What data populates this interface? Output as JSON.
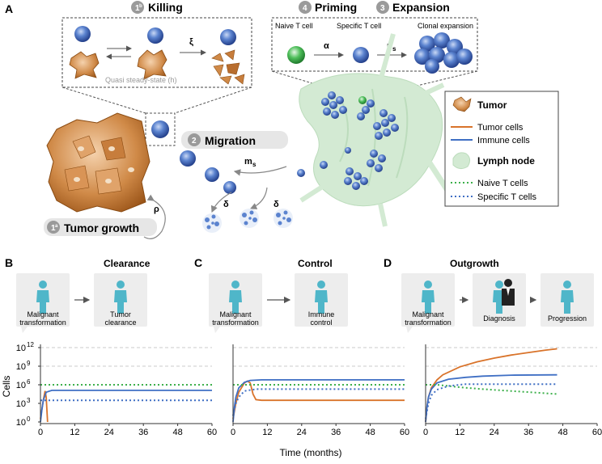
{
  "panels": {
    "A": "A",
    "B": "B",
    "C": "C",
    "D": "D"
  },
  "panel_a": {
    "killing": {
      "badge": "1",
      "badge_sub": "b",
      "title": "Killing",
      "xi": "ξ",
      "note": "Quasi steady-state (h)"
    },
    "priming": {
      "badge": "4",
      "title": "Priming",
      "naive_label": "Naive T cell",
      "specific_label": "Specific T cell",
      "alpha": "α"
    },
    "expansion": {
      "badge": "3",
      "title": "Expansion",
      "clonal_label": "Clonal expansion",
      "ps": "p",
      "ps_sub": "s"
    },
    "migration": {
      "badge": "2",
      "title": "Migration",
      "ms": "m",
      "ms_sub": "s",
      "delta_left": "δ",
      "delta_right": "δ"
    },
    "tumor_growth": {
      "badge": "1",
      "badge_sub": "a",
      "title": "Tumor growth",
      "rho": "ρ"
    },
    "legend": {
      "tumor": "Tumor",
      "tumor_cells": "Tumor cells",
      "immune_cells": "Immune cells",
      "lymph_node": "Lymph node",
      "naive_t_cells": "Naive T cells",
      "specific_t_cells": "Specific T cells"
    },
    "colors": {
      "tumor": "#d9732a",
      "immune": "#3f6fc4",
      "naive": "#3db04b",
      "lymph": "#cfe8cf",
      "cell_blue": "#4f78c9"
    }
  },
  "scenarios": [
    {
      "title": "Clearance",
      "stages": [
        "Malignant\ntransformation",
        "Tumor\nclearance"
      ]
    },
    {
      "title": "Control",
      "stages": [
        "Malignant\ntransformation",
        "Immune\ncontrol"
      ]
    },
    {
      "title": "Outgrowth",
      "stages": [
        "Malignant\ntransformation",
        "Diagnosis",
        "Progression"
      ]
    }
  ],
  "axes": {
    "ylabel": "Cells",
    "xlabel": "Time (months)",
    "yticks": [
      "10",
      "10",
      "10",
      "10",
      "10"
    ],
    "ytick_exp": [
      "0",
      "3",
      "6",
      "9",
      "12"
    ],
    "xticks": [
      "0",
      "12",
      "24",
      "36",
      "48",
      "60"
    ]
  },
  "chart_data": [
    {
      "type": "line",
      "title": "Clearance",
      "xlim": [
        0,
        60
      ],
      "ylim_log10": [
        0,
        12
      ],
      "x_ticks": [
        0,
        12,
        24,
        36,
        48,
        60
      ],
      "reference_lines_log10": [
        9,
        12
      ],
      "series": [
        {
          "name": "Tumor cells",
          "points": [
            [
              0,
              0.5
            ],
            [
              1,
              3.5
            ],
            [
              1.6,
              5
            ],
            [
              2,
              4
            ],
            [
              2.5,
              0
            ]
          ]
        },
        {
          "name": "Immune cells",
          "points": [
            [
              0,
              0
            ],
            [
              0.5,
              2
            ],
            [
              1,
              3.5
            ],
            [
              2,
              4.8
            ],
            [
              4,
              5.1
            ],
            [
              60,
              5.1
            ]
          ]
        },
        {
          "name": "Naive T cells",
          "points": [
            [
              0,
              6
            ],
            [
              60,
              6
            ]
          ]
        },
        {
          "name": "Specific T cells",
          "points": [
            [
              0,
              3.5
            ],
            [
              60,
              3.5
            ]
          ]
        }
      ]
    },
    {
      "type": "line",
      "title": "Control",
      "xlim": [
        0,
        60
      ],
      "ylim_log10": [
        0,
        12
      ],
      "x_ticks": [
        0,
        12,
        24,
        36,
        48,
        60
      ],
      "reference_lines_log10": [
        9,
        12
      ],
      "series": [
        {
          "name": "Tumor cells",
          "points": [
            [
              0,
              0.5
            ],
            [
              1,
              3
            ],
            [
              2,
              4.8
            ],
            [
              4,
              6.3
            ],
            [
              5,
              6.6
            ],
            [
              6,
              6.3
            ],
            [
              7,
              4.5
            ],
            [
              8,
              3.6
            ],
            [
              10,
              3.5
            ],
            [
              60,
              3.5
            ]
          ]
        },
        {
          "name": "Immune cells",
          "points": [
            [
              0,
              0
            ],
            [
              0.5,
              2.5
            ],
            [
              1,
              4
            ],
            [
              2,
              5.5
            ],
            [
              4,
              6.4
            ],
            [
              6,
              6.7
            ],
            [
              10,
              6.8
            ],
            [
              60,
              6.8
            ]
          ]
        },
        {
          "name": "Naive T cells",
          "points": [
            [
              0,
              6
            ],
            [
              60,
              6
            ]
          ]
        },
        {
          "name": "Specific T cells",
          "points": [
            [
              0,
              1
            ],
            [
              1,
              3
            ],
            [
              2,
              4
            ],
            [
              4,
              5
            ],
            [
              8,
              5.3
            ],
            [
              60,
              5.3
            ]
          ]
        }
      ]
    },
    {
      "type": "line",
      "title": "Outgrowth",
      "xlim": [
        0,
        60
      ],
      "ylim_log10": [
        0,
        12
      ],
      "x_ticks": [
        0,
        12,
        24,
        36,
        48,
        60
      ],
      "reference_lines_log10": [
        9,
        12
      ],
      "series": [
        {
          "name": "Tumor cells",
          "points": [
            [
              0,
              0
            ],
            [
              0.5,
              2.5
            ],
            [
              1,
              4
            ],
            [
              2,
              5.5
            ],
            [
              4,
              6.8
            ],
            [
              6,
              7.6
            ],
            [
              12,
              8.9
            ],
            [
              18,
              9.7
            ],
            [
              24,
              10.3
            ],
            [
              30,
              10.8
            ],
            [
              36,
              11.2
            ],
            [
              42,
              11.6
            ],
            [
              46,
              11.8
            ]
          ]
        },
        {
          "name": "Immune cells",
          "points": [
            [
              0,
              0
            ],
            [
              0.5,
              2.5
            ],
            [
              1,
              4
            ],
            [
              2,
              5.3
            ],
            [
              4,
              6.3
            ],
            [
              8,
              6.9
            ],
            [
              14,
              7.2
            ],
            [
              20,
              7.4
            ],
            [
              30,
              7.55
            ],
            [
              46,
              7.6
            ]
          ]
        },
        {
          "name": "Naive T cells",
          "points": [
            [
              0,
              6
            ],
            [
              4,
              6
            ],
            [
              8,
              5.8
            ],
            [
              12,
              5.6
            ],
            [
              20,
              5.3
            ],
            [
              30,
              5
            ],
            [
              40,
              4.7
            ],
            [
              46,
              4.5
            ]
          ]
        },
        {
          "name": "Specific T cells",
          "points": [
            [
              0,
              0.5
            ],
            [
              1,
              3
            ],
            [
              2,
              4.3
            ],
            [
              4,
              5.2
            ],
            [
              8,
              5.8
            ],
            [
              14,
              6.1
            ],
            [
              24,
              6.1
            ],
            [
              46,
              6.1
            ]
          ]
        }
      ]
    }
  ]
}
